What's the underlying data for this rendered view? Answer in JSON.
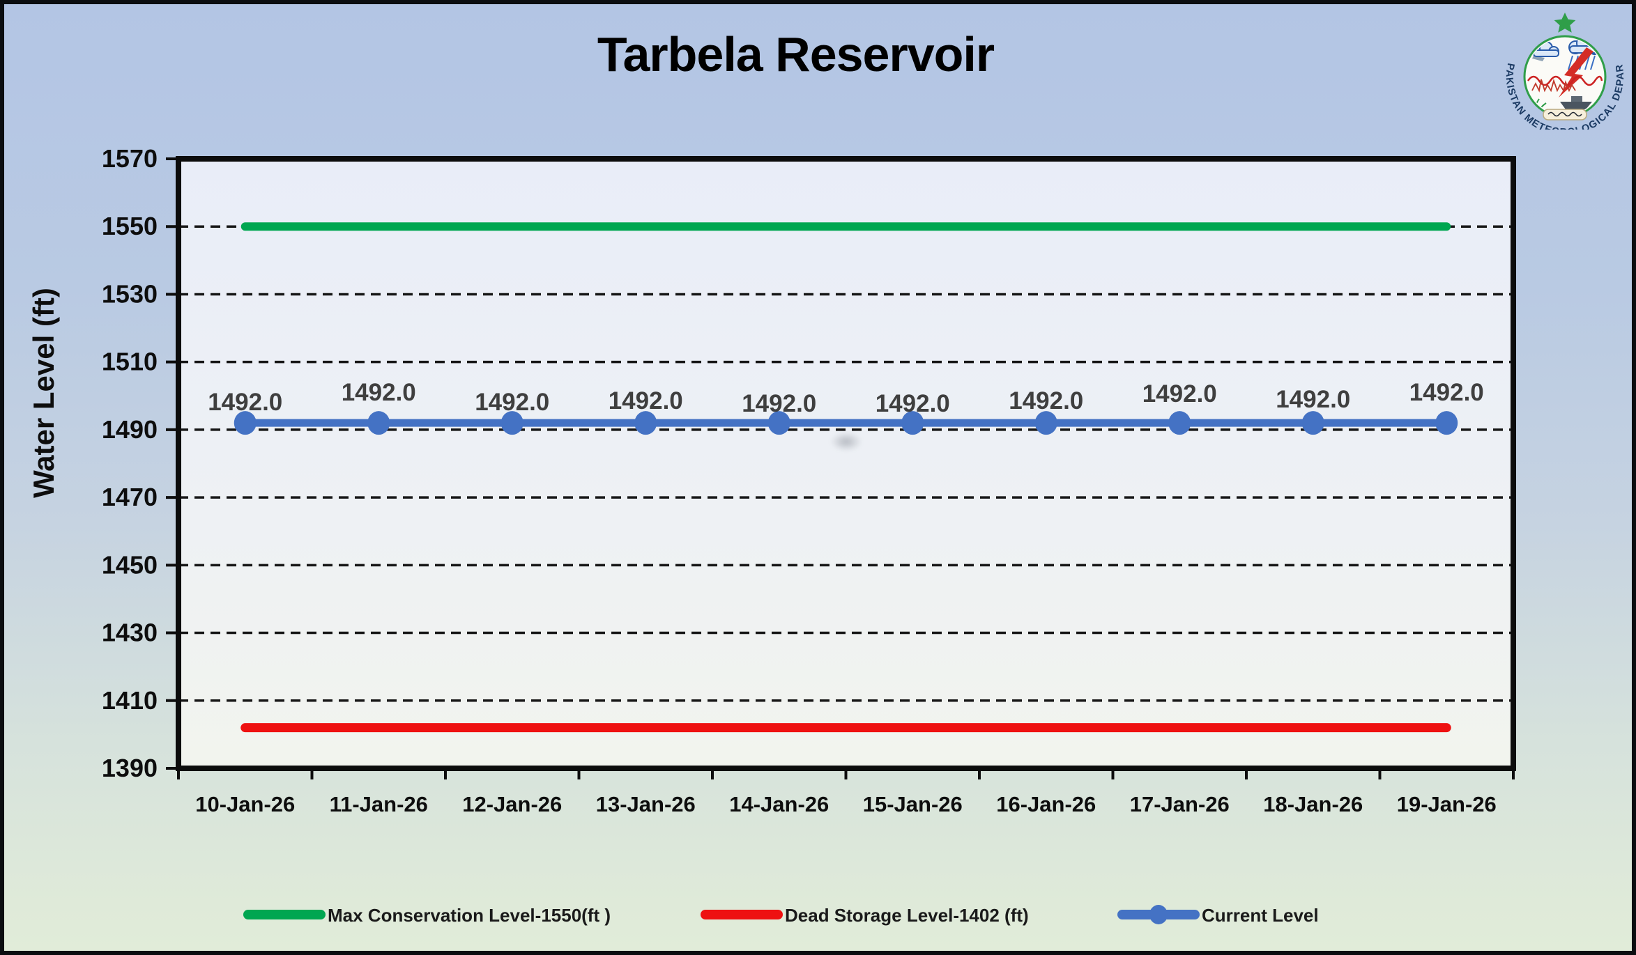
{
  "page": {
    "logo": {
      "organization": "Pakistan Meteorological Department",
      "ring_text": "PAKISTAN METEOROLOGICAL DEPARTMENT"
    }
  },
  "chart_data": {
    "type": "line",
    "title": "Tarbela Reservoir",
    "xlabel": "",
    "ylabel": "Water Level (ft)",
    "categories": [
      "10-Jan-26",
      "11-Jan-26",
      "12-Jan-26",
      "13-Jan-26",
      "14-Jan-26",
      "15-Jan-26",
      "16-Jan-26",
      "17-Jan-26",
      "18-Jan-26",
      "19-Jan-26"
    ],
    "ylim": [
      1390,
      1570
    ],
    "yticks": [
      1390,
      1410,
      1430,
      1450,
      1470,
      1490,
      1510,
      1530,
      1550,
      1570
    ],
    "grid": "horizontal-dashed",
    "legend_position": "bottom",
    "series": [
      {
        "name": "Max Conservation Level-1550(ft )",
        "color": "#00a651",
        "values": [
          1550,
          1550,
          1550,
          1550,
          1550,
          1550,
          1550,
          1550,
          1550,
          1550
        ],
        "markers": false,
        "data_labels": null
      },
      {
        "name": "Dead Storage Level-1402 (ft)",
        "color": "#ee1111",
        "values": [
          1402,
          1402,
          1402,
          1402,
          1402,
          1402,
          1402,
          1402,
          1402,
          1402
        ],
        "markers": false,
        "data_labels": null
      },
      {
        "name": "Current Level",
        "color": "#4472c4",
        "values": [
          1492,
          1492,
          1492,
          1492,
          1492,
          1492,
          1492,
          1492,
          1492,
          1492
        ],
        "markers": true,
        "data_labels": [
          "1492.0",
          "1492.0",
          "1492.0",
          "1492.0",
          "1492.0",
          "1492.0",
          "1492.0",
          "1492.0",
          "1492.0",
          "1492.0"
        ]
      }
    ]
  }
}
